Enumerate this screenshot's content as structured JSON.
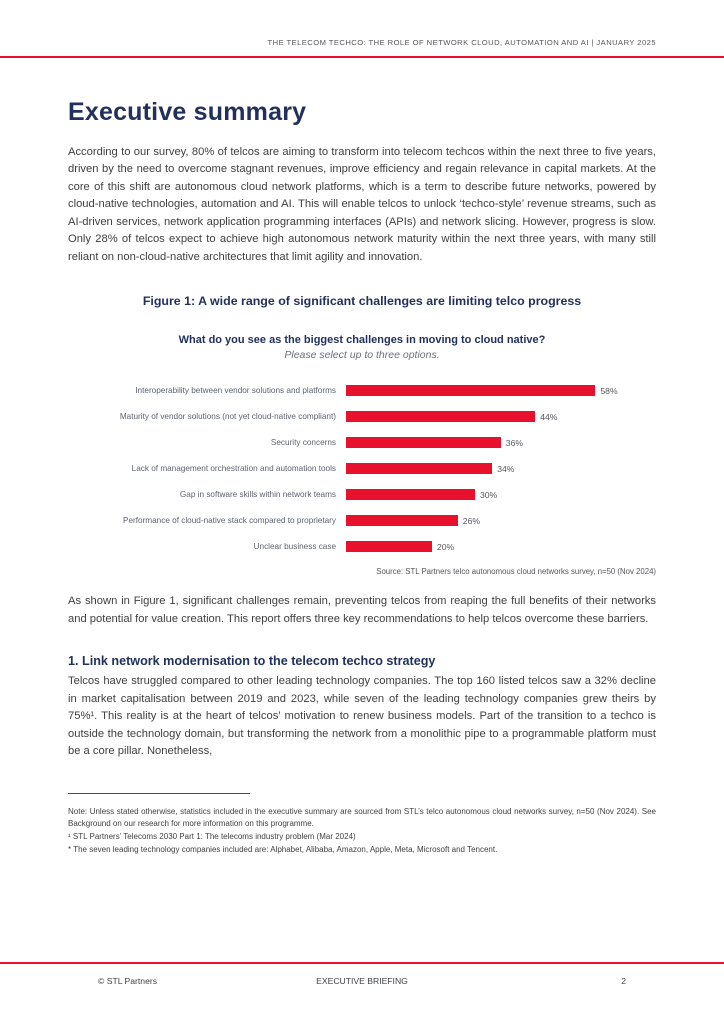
{
  "theme": {
    "accent_red": "#E8112D",
    "navy": "#22315C"
  },
  "header": {
    "text": "THE TELECOM TECHCO: THE ROLE OF NETWORK CLOUD, AUTOMATION AND AI  |  JANUARY 2025"
  },
  "title": "Executive summary",
  "intro_paragraph": "According to our survey, 80% of telcos are aiming to transform into telecom techcos within the next three to five years, driven by the need to overcome stagnant revenues, improve efficiency and regain relevance in capital markets. At the core of this shift are autonomous cloud network platforms, which is a term to describe future networks, powered by cloud-native technologies, automation and AI. This will enable telcos to unlock ‘techco-style’ revenue streams, such as AI-driven services, network application programming interfaces (APIs) and network slicing. However, progress is slow. Only 28% of telcos expect to achieve high autonomous network maturity within the next three years, with many still reliant on non-cloud-native architectures that limit agility and innovation.",
  "figure": {
    "caption": "Figure 1: A wide range of significant challenges are limiting telco progress",
    "source": "Source: STL Partners telco autonomous cloud networks survey, n=50 (Nov 2024)"
  },
  "chart_data": {
    "type": "bar",
    "orientation": "horizontal",
    "title": "What do you see as the biggest challenges in moving to cloud native?",
    "subtitle": "Please select up to three options.",
    "categories": [
      "Interoperability between vendor solutions and platforms",
      "Maturity of vendor solutions (not yet cloud-native compliant)",
      "Security concerns",
      "Lack of management orchestration and automation tools",
      "Gap in software skills within network teams",
      "Performance of cloud-native stack compared to proprietary",
      "Unclear business case"
    ],
    "values": [
      58,
      44,
      36,
      34,
      30,
      26,
      20
    ],
    "unit": "%",
    "bar_color": "#E8112D",
    "xlim": [
      0,
      60
    ],
    "grid": false,
    "legend": false
  },
  "after_figure_paragraph": "As shown in Figure 1, significant challenges remain, preventing telcos from reaping the full benefits of their networks and potential for value creation. This report offers three key recommendations to help telcos overcome these barriers.",
  "section1": {
    "heading": "1. Link network modernisation to the telecom techco strategy",
    "body": "Telcos have struggled compared to other leading technology companies. The top 160 listed telcos saw a 32% decline in market capitalisation between 2019 and 2023, while seven of the leading technology companies grew theirs by 75%¹. This reality is at the heart of telcos’ motivation to renew business models. Part of the transition to a techco is outside the technology domain, but transforming the network from a monolithic pipe to a programmable platform must be a core pillar. Nonetheless,"
  },
  "footnotes": [
    "Note: Unless stated otherwise, statistics included in the executive summary are sourced from STL’s telco autonomous cloud networks survey, n=50 (Nov 2024). See Background on our research for more information on this programme.",
    "¹ STL Partners’ Telecoms 2030 Part 1: The telecoms industry problem (Mar 2024)",
    "* The seven leading technology companies included are: Alphabet, Alibaba, Amazon, Apple, Meta, Microsoft and Tencent."
  ],
  "footer": {
    "left": "© STL Partners",
    "center": "EXECUTIVE BRIEFING",
    "page_number": "2"
  }
}
